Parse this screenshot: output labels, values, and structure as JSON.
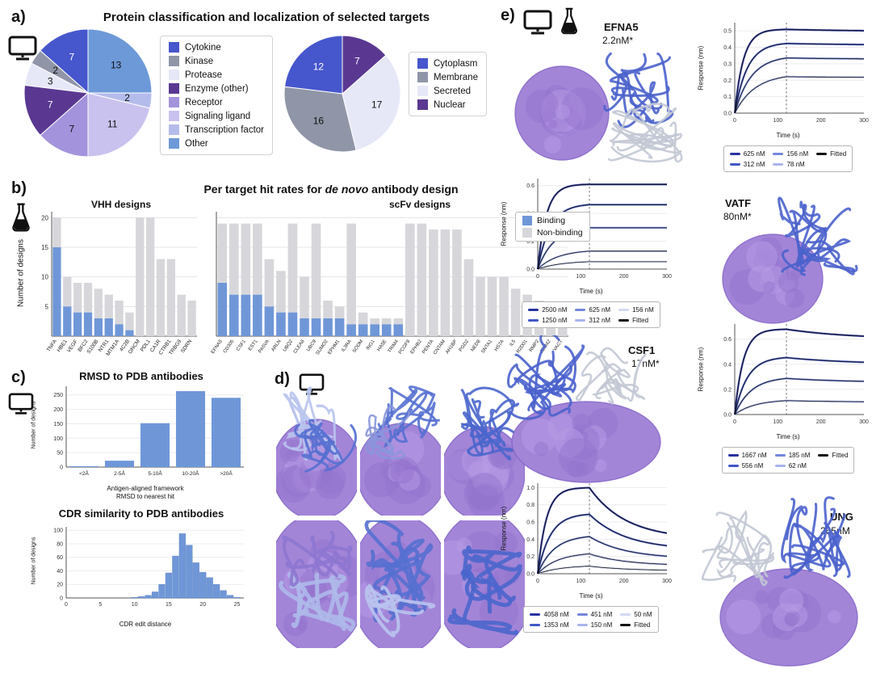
{
  "figure": {
    "panel_labels": {
      "a": "a)",
      "b": "b)",
      "c": "c)",
      "d": "d)",
      "e": "e)"
    },
    "titles": {
      "a": "Protein classification and localization of selected targets",
      "b_prefix": "Per target hit rates for ",
      "b_italic": "de novo",
      "b_suffix": " antibody design"
    }
  },
  "style": {
    "binding_color": "#6f97d8",
    "nonbinding_color": "#d7d7db",
    "bli_palette": [
      "#27339e",
      "#4156c6",
      "#7487dc",
      "#a9b4ec",
      "#d2d8f4"
    ],
    "fitted_color": "#111111",
    "surface_purple": "#a385d8",
    "ribbon_blue": "#4a66cc",
    "ribbon_gray": "#c2c8d4"
  },
  "chart_data": [
    {
      "id": "pie_classification",
      "type": "pie",
      "labels": [
        "Cytokine",
        "Kinase",
        "Protease",
        "Enzyme (other)",
        "Receptor",
        "Signaling ligand",
        "Transcription factor",
        "Other"
      ],
      "values": [
        7,
        2,
        3,
        7,
        7,
        11,
        2,
        13
      ],
      "colors": [
        "#4656cc",
        "#9096a8",
        "#e6e8f8",
        "#5a3892",
        "#a393dc",
        "#c9c2ee",
        "#b4bcec",
        "#6d99d8"
      ]
    },
    {
      "id": "pie_localization",
      "type": "pie",
      "labels": [
        "Cytoplasm",
        "Membrane",
        "Secreted",
        "Nuclear"
      ],
      "values": [
        12,
        16,
        17,
        7
      ],
      "colors": [
        "#4656cc",
        "#9096a8",
        "#e6e8f8",
        "#5a3892"
      ]
    },
    {
      "id": "vhh",
      "type": "bar",
      "stacked": true,
      "subtitle": "VHH designs",
      "ylabel": "Number of designs",
      "ylim": [
        0,
        21
      ],
      "yticks": [
        5,
        10,
        15,
        20
      ],
      "categories": [
        "TNFA",
        "HBE1",
        "VEGF",
        "BFC2",
        "S100B",
        "NTR1",
        "MTM1A",
        "4C2B",
        "ONCM",
        "PDL1",
        "CA1R",
        "CTRB1",
        "TRBG9",
        "SDRN"
      ],
      "binding": [
        15,
        5,
        4,
        4,
        3,
        3,
        2,
        1,
        0,
        0,
        0,
        0,
        0,
        0
      ],
      "totals": [
        20,
        10,
        9,
        9,
        8,
        7,
        6,
        4,
        20,
        20,
        13,
        13,
        7,
        6
      ]
    },
    {
      "id": "scfv",
      "type": "bar",
      "stacked": true,
      "subtitle": "scFv designs",
      "legend_binding": "Binding",
      "legend_nonbinding": "Non-binding",
      "ylim": [
        0,
        21
      ],
      "yticks": [
        5,
        10,
        15,
        20
      ],
      "categories": [
        "EFNA5",
        "CD305",
        "CSF1",
        "EST1",
        "PA5VA",
        "ARLN",
        "UBQ2",
        "CLEA6",
        "UBC9",
        "SUMO2",
        "EPHM1",
        "IL3RA",
        "SODM",
        "ING1",
        "HA5E",
        "TRIM4",
        "PCGF8",
        "EPHB2",
        "PENTA",
        "CNTAM",
        "AH1BP",
        "PGD2",
        "NED8",
        "SNTA1",
        "HS7A",
        "IL5",
        "R2D01",
        "RMP2",
        "JDM42",
        "VACT"
      ],
      "binding": [
        9,
        7,
        7,
        7,
        5,
        4,
        4,
        3,
        3,
        3,
        3,
        2,
        2,
        2,
        2,
        2,
        0,
        0,
        0,
        0,
        0,
        0,
        0,
        0,
        0,
        0,
        0,
        0,
        0,
        0
      ],
      "totals": [
        19,
        19,
        19,
        19,
        13,
        11,
        19,
        10,
        19,
        6,
        5,
        19,
        4,
        3,
        3,
        3,
        19,
        19,
        18,
        18,
        18,
        13,
        10,
        10,
        10,
        8,
        7,
        6,
        5,
        4
      ]
    },
    {
      "id": "rmsd",
      "type": "bar",
      "title": "RMSD to PDB antibodies",
      "categories": [
        "<2Å",
        "2-5Å",
        "5-10Å",
        "10-20Å",
        ">20Å"
      ],
      "values": [
        3,
        22,
        152,
        263,
        240
      ],
      "ylabel": "Number of designs",
      "xlabel1": "Antigen-aligned framework",
      "xlabel2": "RMSD to nearest hit",
      "ylim": [
        0,
        280
      ],
      "yticks": [
        0,
        50,
        100,
        150,
        200,
        250
      ]
    },
    {
      "id": "cdr",
      "type": "bar",
      "title": "CDR similarity to PDB antibodies",
      "x_start": 10,
      "values": [
        1,
        2,
        4,
        9,
        20,
        37,
        62,
        95,
        78,
        52,
        38,
        30,
        20,
        11,
        4,
        1
      ],
      "ylabel": "Number of designs",
      "xlabel": "CDR edit distance",
      "xlim": [
        0,
        26
      ],
      "xticks": [
        0,
        5,
        10,
        15,
        20,
        25
      ],
      "ylim": [
        0,
        105
      ],
      "yticks": [
        0,
        20,
        40,
        60,
        80,
        100
      ]
    },
    {
      "id": "bli_efna5",
      "type": "line",
      "target": "EFNA5",
      "kd": "2.2nM*",
      "xlabel": "Time (s)",
      "ylabel": "Response (nm)",
      "xticks": [
        0,
        100,
        200,
        300
      ],
      "yticks": [
        0,
        0.1,
        0.2,
        0.3,
        0.4,
        0.5
      ],
      "ylim": [
        0,
        0.55
      ],
      "t_assoc": 120,
      "t_end": 300,
      "decay_end": 0.97,
      "decay_tau": 250,
      "series": [
        {
          "label": "625 nM",
          "plateau": 0.51
        },
        {
          "label": "312 nM",
          "plateau": 0.43
        },
        {
          "label": "156 nM",
          "plateau": 0.35
        },
        {
          "label": "78 nM",
          "plateau": 0.24
        }
      ],
      "fitted_label": "Fitted"
    },
    {
      "id": "bli_vatf",
      "type": "line",
      "target": "VATF",
      "kd": "80nM*",
      "xlabel": "Time (s)",
      "ylabel": "Response (nm)",
      "xticks": [
        0,
        100,
        200,
        300
      ],
      "yticks": [
        0,
        0.2,
        0.4,
        0.6
      ],
      "ylim": [
        0,
        0.65
      ],
      "t_assoc": 120,
      "t_end": 300,
      "decay_end": 1.0,
      "decay_tau": 300,
      "series": [
        {
          "label": "2500 nM",
          "plateau": 0.61
        },
        {
          "label": "1250 nM",
          "plateau": 0.47
        },
        {
          "label": "625 nM",
          "plateau": 0.31
        },
        {
          "label": "312 nM",
          "plateau": 0.14
        },
        {
          "label": "156 nM",
          "plateau": 0.06
        }
      ],
      "fitted_label": "Fitted"
    },
    {
      "id": "bli_csf1",
      "type": "line",
      "target": "CSF1",
      "kd": "17nM*",
      "xlabel": "Time (s)",
      "ylabel": "Response (nm)",
      "xticks": [
        0,
        100,
        200,
        300
      ],
      "yticks": [
        0,
        0.2,
        0.4,
        0.6
      ],
      "ylim": [
        0,
        0.72
      ],
      "t_assoc": 120,
      "t_end": 300,
      "decay_end": 0.88,
      "decay_tau": 160,
      "series": [
        {
          "label": "1667 nM",
          "plateau": 0.68
        },
        {
          "label": "556 nM",
          "plateau": 0.46
        },
        {
          "label": "185 nM",
          "plateau": 0.3
        },
        {
          "label": "62 nM",
          "plateau": 0.12
        }
      ],
      "fitted_label": "Fitted"
    },
    {
      "id": "bli_ung",
      "type": "line",
      "target": "UNG",
      "kd": "265nM",
      "xlabel": "Time (s)",
      "ylabel": "Response (nm)",
      "xticks": [
        0,
        100,
        200,
        300
      ],
      "yticks": [
        0,
        0.2,
        0.4,
        0.6,
        0.8,
        1.0
      ],
      "ylim": [
        0,
        1.05
      ],
      "t_assoc": 120,
      "t_end": 300,
      "decay_end": 0.4,
      "decay_tau": 85,
      "series": [
        {
          "label": "4058 nM",
          "plateau": 1.0
        },
        {
          "label": "1353 nM",
          "plateau": 0.7
        },
        {
          "label": "451 nM",
          "plateau": 0.45
        },
        {
          "label": "150 nM",
          "plateau": 0.25
        },
        {
          "label": "50 nM",
          "plateau": 0.1
        }
      ],
      "fitted_label": "Fitted"
    }
  ]
}
